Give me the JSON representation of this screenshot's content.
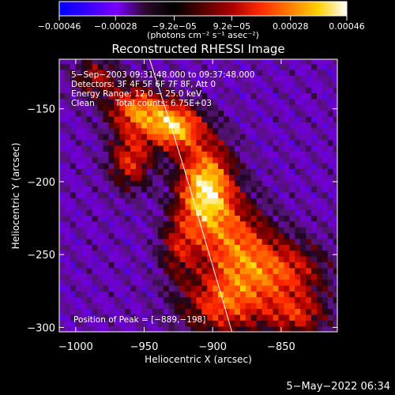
{
  "chart_data": {
    "type": "heatmap",
    "title": "Reconstructed RHESSI Image",
    "xlabel": "Heliocentric X (arcsec)",
    "ylabel": "Heliocentric Y (arcsec)",
    "xlim": [
      -1012,
      -809
    ],
    "ylim": [
      -303,
      -116
    ],
    "x_ticks": [
      {
        "value": -1000,
        "label": "−1000"
      },
      {
        "value": -950,
        "label": "−950"
      },
      {
        "value": -900,
        "label": "−900"
      },
      {
        "value": -850,
        "label": "−850"
      }
    ],
    "y_ticks": [
      {
        "value": -150,
        "label": "−150"
      },
      {
        "value": -200,
        "label": "−200"
      },
      {
        "value": -250,
        "label": "−250"
      },
      {
        "value": -300,
        "label": "−300"
      }
    ],
    "colorbar": {
      "min": -0.00046,
      "max": 0.00046,
      "colors": [
        "#0000ff",
        "#3a00ff",
        "#7a00ff",
        "#2a0a2a",
        "#000000",
        "#550000",
        "#aa0000",
        "#ff2a00",
        "#ff7a00",
        "#ffd000",
        "#ffffff"
      ],
      "tick_labels": [
        {
          "value": -0.00046,
          "label": "−0.00046"
        },
        {
          "value": -0.00028,
          "label": "−0.00028"
        },
        {
          "value": -9.2e-05,
          "label": "−9.2e−05"
        },
        {
          "value": 9.2e-05,
          "label": "9.2e−05"
        },
        {
          "value": 0.00028,
          "label": "0.00028"
        },
        {
          "value": 0.00046,
          "label": "0.00046"
        }
      ],
      "unit_label": "(photons cm⁻² s⁻¹ asec⁻²)"
    },
    "limb_curve": [
      [
        -946,
        -116
      ],
      [
        -931,
        -160
      ],
      [
        -917,
        -203
      ],
      [
        -904,
        -245
      ],
      [
        -893,
        -280
      ],
      [
        -886,
        -303
      ]
    ],
    "sources": [
      {
        "x": -905,
        "y": -205,
        "sx": 14,
        "sy": 22,
        "a": 1.0
      },
      {
        "x": -928,
        "y": -162,
        "sx": 14,
        "sy": 11,
        "a": 0.85
      },
      {
        "x": -955,
        "y": -150,
        "sx": 15,
        "sy": 11,
        "a": 0.7
      },
      {
        "x": -960,
        "y": -185,
        "sx": 11,
        "sy": 14,
        "a": 0.55
      },
      {
        "x": -882,
        "y": -245,
        "sx": 18,
        "sy": 22,
        "a": 0.6
      },
      {
        "x": -848,
        "y": -262,
        "sx": 22,
        "sy": 16,
        "a": 0.55
      },
      {
        "x": -893,
        "y": -285,
        "sx": 22,
        "sy": 15,
        "a": 0.55
      },
      {
        "x": -838,
        "y": -292,
        "sx": 16,
        "sy": 10,
        "a": 0.45
      },
      {
        "x": -985,
        "y": -128,
        "sx": 12,
        "sy": 10,
        "a": 0.4
      },
      {
        "x": -925,
        "y": -245,
        "sx": 10,
        "sy": 16,
        "a": 0.4
      }
    ]
  },
  "annotations": {
    "time": "5−Sep−2003 09:31:48.000 to 09:37:48.000",
    "detectors": "Detectors: 3F 4F 5F 6F 7F 8F, Att 0",
    "energy": "Energy Range: 12.0 − 25.0 keV",
    "clean_label": "Clean",
    "total_counts": "Total counts: 6.75E+03",
    "peak": "Position of Peak = [−889,−198]"
  },
  "timestamp": "5−May−2022 06:34"
}
